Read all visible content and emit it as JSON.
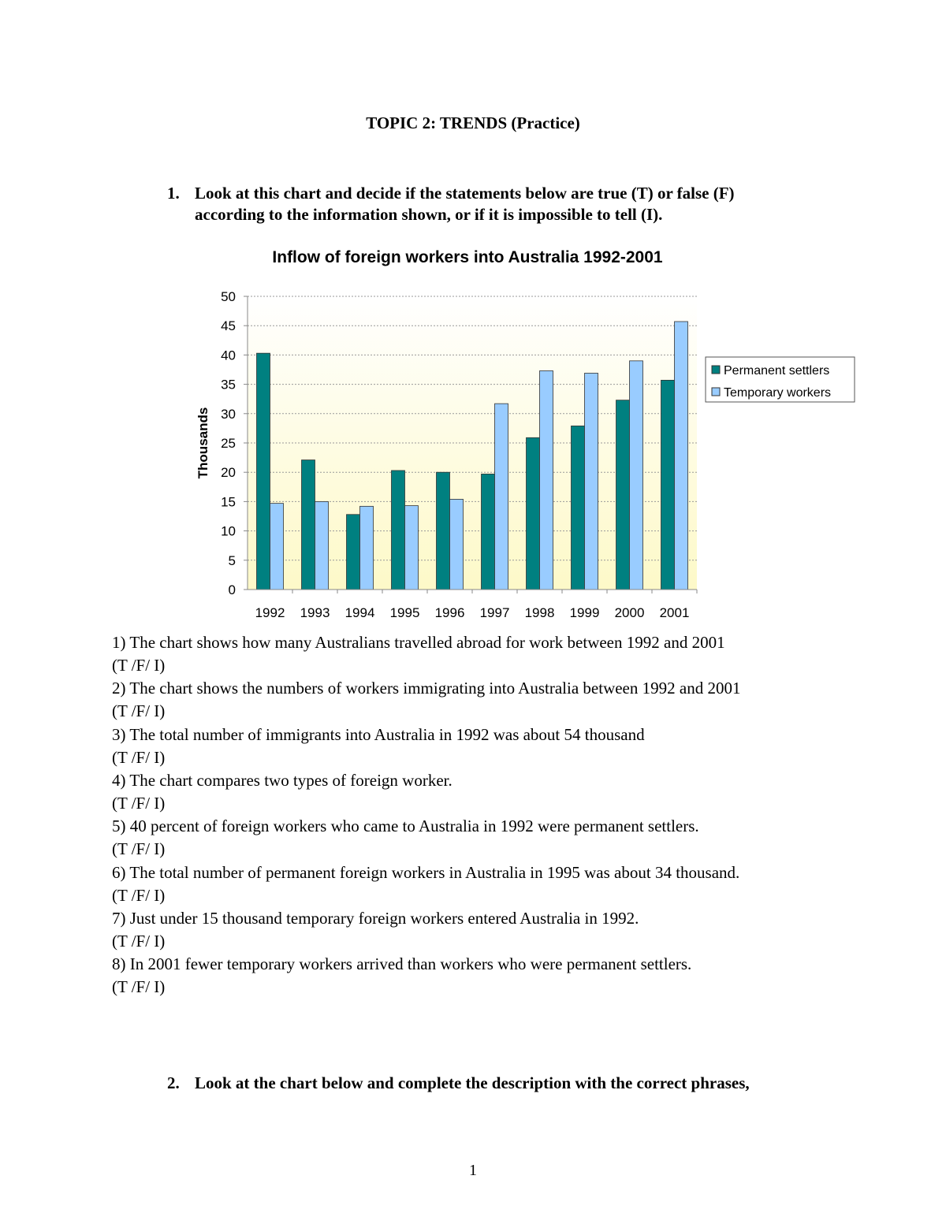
{
  "title": "TOPIC 2: TRENDS (Practice)",
  "question1": {
    "number": "1.",
    "line1": "Look at this chart and decide if the statements below are true (T) or false (F)",
    "line2": "according to the information shown, or if it is impossible to tell (I)."
  },
  "chart_data": {
    "type": "bar",
    "title": "Inflow of foreign workers into Australia 1992-2001",
    "xlabel": "",
    "ylabel": "Thousands",
    "ylim": [
      0,
      50
    ],
    "yticks": [
      "0",
      "5",
      "10",
      "15",
      "20",
      "25",
      "30",
      "35",
      "40",
      "45",
      "50"
    ],
    "grid": true,
    "legend_position": "right",
    "categories": [
      "1992",
      "1993",
      "1994",
      "1995",
      "1996",
      "1997",
      "1998",
      "1999",
      "2000",
      "2001"
    ],
    "series": [
      {
        "name": "Permanent settlers",
        "color": "#008080",
        "values": [
          40.3,
          22.1,
          12.8,
          20.3,
          20.0,
          19.7,
          25.9,
          27.9,
          32.3,
          35.7
        ]
      },
      {
        "name": "Temporary workers",
        "color": "#99ccff",
        "values": [
          14.7,
          15.0,
          14.2,
          14.3,
          15.4,
          31.7,
          37.3,
          36.9,
          39.0,
          45.7
        ]
      }
    ]
  },
  "statements": [
    {
      "text": "1) The chart shows how many Australians travelled abroad for work between 1992 and 2001",
      "options": "(T /F/ I)"
    },
    {
      "text": "2) The chart shows the numbers of workers immigrating into Australia between 1992 and 2001",
      "options": "(T /F/ I)"
    },
    {
      "text": "3) The total number of immigrants into Australia in 1992 was about 54 thousand",
      "options": "(T /F/ I)"
    },
    {
      "text": "4) The chart compares two types of foreign worker.",
      "options": "(T /F/ I)"
    },
    {
      "text": "5) 40 percent of foreign workers who came to Australia in 1992 were permanent settlers.",
      "options": "(T /F/ I)"
    },
    {
      "text": "6) The total number of permanent foreign workers in Australia in 1995 was about 34 thousand.",
      "options": "(T /F/ I)"
    },
    {
      "text": "7) Just under 15 thousand temporary foreign workers entered Australia in 1992.",
      "options": "(T /F/ I)"
    },
    {
      "text": "8) In 2001 fewer temporary workers arrived than workers who were permanent settlers.",
      "options": "(T /F/ I)"
    }
  ],
  "question2": {
    "number": "2.",
    "line1": "Look at the chart below and complete the description with the correct phrases,"
  },
  "page_number": "1"
}
